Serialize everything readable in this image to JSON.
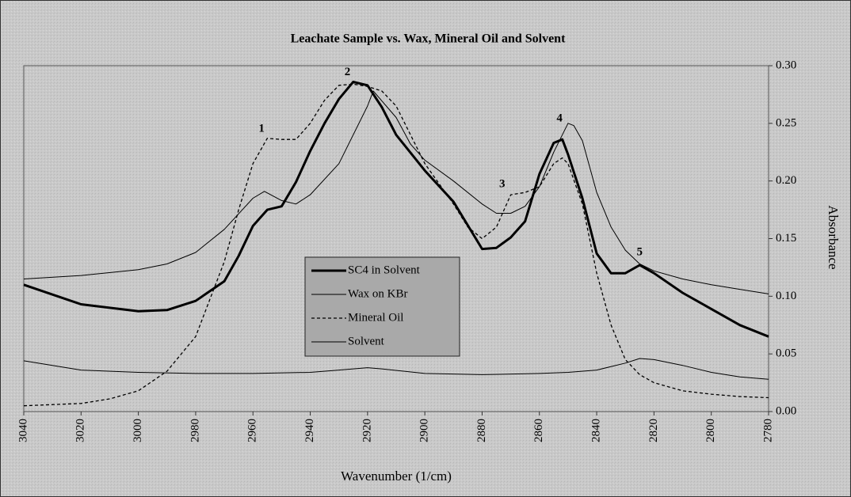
{
  "chart_data": {
    "type": "line",
    "title": "Leachate Sample vs. Wax, Mineral Oil and Solvent",
    "xlabel": "Wavenumber (1/cm)",
    "ylabel": "Absorbance",
    "x_reversed": true,
    "xlim": [
      3040,
      2780
    ],
    "xticks": [
      3040,
      3020,
      3000,
      2980,
      2960,
      2940,
      2920,
      2900,
      2880,
      2860,
      2840,
      2820,
      2800,
      2780
    ],
    "ylim": [
      0,
      0.3
    ],
    "yticks": [
      {
        "value": 0,
        "label": "0.00"
      },
      {
        "value": 0.05,
        "label": "0.05"
      },
      {
        "value": 0.1,
        "label": "0.10"
      },
      {
        "value": 0.15,
        "label": "0.15"
      },
      {
        "value": 0.2,
        "label": "0.20"
      },
      {
        "value": 0.25,
        "label": "0.25"
      },
      {
        "value": 0.3,
        "label": "0.30"
      }
    ],
    "y_axis_side": "right",
    "grid": false,
    "legend": "center",
    "series": [
      {
        "name": "SC4 in Solvent",
        "color": "#000000",
        "style": "solid",
        "width": 3,
        "x": [
          3040,
          3020,
          3000,
          2990,
          2980,
          2970,
          2965,
          2960,
          2955,
          2950,
          2945,
          2940,
          2935,
          2930,
          2925,
          2920,
          2915,
          2910,
          2900,
          2890,
          2880,
          2875,
          2870,
          2865,
          2860,
          2855,
          2852,
          2850,
          2845,
          2840,
          2835,
          2830,
          2825,
          2820,
          2810,
          2800,
          2790,
          2780
        ],
        "values": [
          0.11,
          0.093,
          0.087,
          0.088,
          0.096,
          0.113,
          0.135,
          0.161,
          0.175,
          0.178,
          0.199,
          0.226,
          0.25,
          0.271,
          0.286,
          0.283,
          0.264,
          0.24,
          0.209,
          0.182,
          0.141,
          0.142,
          0.151,
          0.165,
          0.206,
          0.233,
          0.236,
          0.223,
          0.185,
          0.137,
          0.12,
          0.12,
          0.127,
          0.12,
          0.103,
          0.089,
          0.075,
          0.065
        ]
      },
      {
        "name": "Wax on KBr",
        "color": "#000000",
        "style": "solid",
        "width": 1,
        "x": [
          3040,
          3020,
          3000,
          2990,
          2980,
          2970,
          2960,
          2956,
          2950,
          2945,
          2940,
          2930,
          2920,
          2918,
          2910,
          2905,
          2900,
          2890,
          2880,
          2875,
          2870,
          2865,
          2860,
          2855,
          2850,
          2848,
          2845,
          2840,
          2835,
          2830,
          2825,
          2820,
          2810,
          2800,
          2790,
          2780
        ],
        "values": [
          0.115,
          0.118,
          0.123,
          0.128,
          0.138,
          0.158,
          0.185,
          0.191,
          0.183,
          0.18,
          0.188,
          0.215,
          0.265,
          0.278,
          0.255,
          0.232,
          0.218,
          0.2,
          0.18,
          0.172,
          0.172,
          0.178,
          0.195,
          0.225,
          0.25,
          0.248,
          0.235,
          0.19,
          0.16,
          0.14,
          0.128,
          0.122,
          0.115,
          0.11,
          0.106,
          0.102
        ]
      },
      {
        "name": "Mineral Oil",
        "color": "#000000",
        "style": "dashed",
        "width": 1.3,
        "x": [
          3040,
          3020,
          3010,
          3000,
          2990,
          2980,
          2970,
          2965,
          2960,
          2955,
          2950,
          2945,
          2940,
          2935,
          2930,
          2925,
          2920,
          2915,
          2910,
          2905,
          2900,
          2890,
          2885,
          2880,
          2875,
          2870,
          2865,
          2860,
          2855,
          2852,
          2850,
          2845,
          2840,
          2835,
          2830,
          2825,
          2820,
          2810,
          2800,
          2790,
          2780
        ],
        "values": [
          0.005,
          0.007,
          0.011,
          0.018,
          0.035,
          0.065,
          0.13,
          0.175,
          0.215,
          0.237,
          0.236,
          0.236,
          0.25,
          0.27,
          0.283,
          0.284,
          0.282,
          0.278,
          0.265,
          0.24,
          0.215,
          0.18,
          0.16,
          0.15,
          0.16,
          0.188,
          0.19,
          0.195,
          0.215,
          0.22,
          0.215,
          0.18,
          0.12,
          0.075,
          0.045,
          0.032,
          0.025,
          0.018,
          0.015,
          0.013,
          0.012
        ]
      },
      {
        "name": "Solvent",
        "color": "#000000",
        "style": "solid",
        "width": 1,
        "x": [
          3040,
          3020,
          3000,
          2980,
          2960,
          2940,
          2930,
          2920,
          2915,
          2900,
          2880,
          2860,
          2850,
          2840,
          2830,
          2825,
          2820,
          2810,
          2800,
          2790,
          2780
        ],
        "values": [
          0.044,
          0.036,
          0.034,
          0.033,
          0.033,
          0.034,
          0.036,
          0.038,
          0.037,
          0.033,
          0.032,
          0.033,
          0.034,
          0.036,
          0.042,
          0.046,
          0.045,
          0.04,
          0.034,
          0.03,
          0.028
        ]
      }
    ],
    "annotations": [
      {
        "text": "1",
        "x": 2957,
        "y": 0.245
      },
      {
        "text": "2",
        "x": 2927,
        "y": 0.294
      },
      {
        "text": "3",
        "x": 2873,
        "y": 0.197
      },
      {
        "text": "4",
        "x": 2853,
        "y": 0.254
      },
      {
        "text": "5",
        "x": 2825,
        "y": 0.138
      }
    ]
  }
}
